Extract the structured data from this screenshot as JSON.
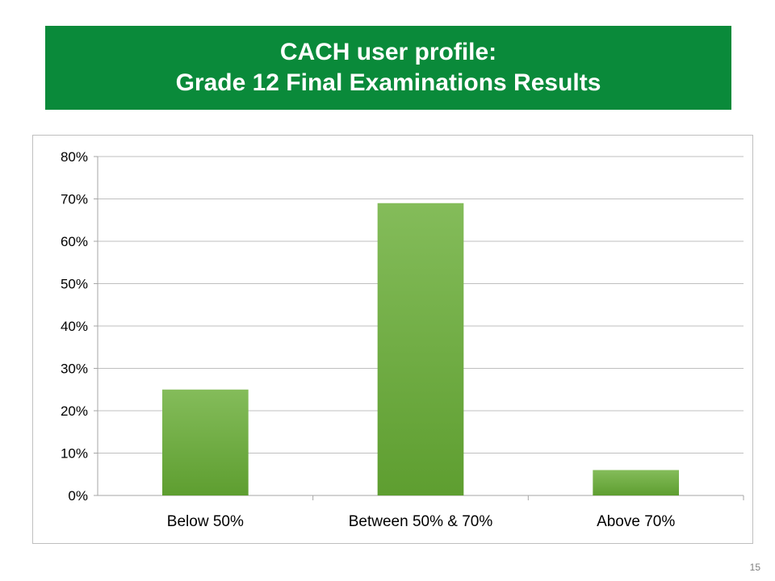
{
  "slide": {
    "title_line1": "CACH user profile:",
    "title_line2": "Grade 12 Final Examinations Results",
    "page_number": "15",
    "banner_color": "#0a8a3a"
  },
  "chart_data": {
    "type": "bar",
    "categories": [
      "Below 50%",
      "Between 50% & 70%",
      "Above 70%"
    ],
    "values": [
      0.25,
      0.69,
      0.06
    ],
    "ylim": [
      0,
      0.8
    ],
    "yticks": [
      "0%",
      "10%",
      "20%",
      "30%",
      "40%",
      "50%",
      "60%",
      "70%",
      "80%"
    ],
    "grid": true,
    "legend": "none",
    "bar_color": "#6aaa3a",
    "bar_color_light": "#84bc5a"
  }
}
